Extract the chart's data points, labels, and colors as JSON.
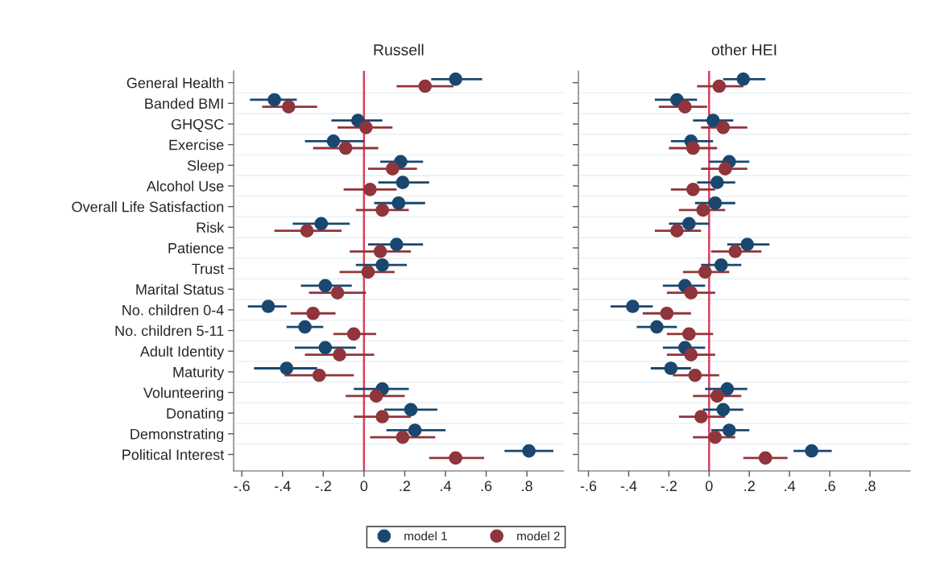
{
  "chart_data": [
    {
      "type": "scatter",
      "orientation": "horizontal",
      "title": "Russell",
      "marker": "circle",
      "grid": "y",
      "legend": "bottom",
      "categories": [
        "General Health",
        "Banded BMI",
        "GHQSC",
        "Exercise",
        "Sleep",
        "Alcohol Use",
        "Overall Life Satisfaction",
        "Risk",
        "Patience",
        "Trust",
        "Marital Status",
        "No. children 0-4",
        "No. children 5-11",
        "Adult Identity",
        "Maturity",
        "Volunteering",
        "Donating",
        "Demonstrating",
        "Political Interest"
      ],
      "xlim": [
        -0.64,
        0.98
      ],
      "xticks": [
        {
          "value": -0.6,
          "label": "-.6"
        },
        {
          "value": -0.4,
          "label": "-.4"
        },
        {
          "value": -0.2,
          "label": "-.2"
        },
        0,
        {
          "value": 0.2,
          "label": ".2"
        },
        {
          "value": 0.4,
          "label": ".4"
        },
        {
          "value": 0.6,
          "label": ".6"
        },
        {
          "value": 0.8,
          "label": ".8"
        }
      ],
      "ref_lines": [
        {
          "axis": "x",
          "value": 0,
          "color": "#d6405e"
        }
      ],
      "series": [
        {
          "name": "model 1",
          "color": "#1a476f",
          "values": [
            0.45,
            -0.44,
            -0.03,
            -0.15,
            0.18,
            0.19,
            0.17,
            -0.21,
            0.16,
            0.09,
            -0.19,
            -0.47,
            -0.29,
            -0.19,
            -0.38,
            0.09,
            0.23,
            0.25,
            0.81
          ],
          "errors": [
            [
              0.33,
              0.58
            ],
            [
              -0.56,
              -0.33
            ],
            [
              -0.16,
              0.09
            ],
            [
              -0.29,
              0.0
            ],
            [
              0.08,
              0.29
            ],
            [
              0.07,
              0.32
            ],
            [
              0.05,
              0.3
            ],
            [
              -0.35,
              -0.07
            ],
            [
              0.02,
              0.29
            ],
            [
              -0.04,
              0.21
            ],
            [
              -0.31,
              -0.06
            ],
            [
              -0.57,
              -0.38
            ],
            [
              -0.38,
              -0.2
            ],
            [
              -0.34,
              -0.04
            ],
            [
              -0.54,
              -0.23
            ],
            [
              -0.05,
              0.22
            ],
            [
              0.1,
              0.36
            ],
            [
              0.11,
              0.4
            ],
            [
              0.69,
              0.93
            ]
          ]
        },
        {
          "name": "model 2",
          "color": "#90353b",
          "values": [
            0.3,
            -0.37,
            0.01,
            -0.09,
            0.14,
            0.03,
            0.09,
            -0.28,
            0.08,
            0.02,
            -0.13,
            -0.25,
            -0.05,
            -0.12,
            -0.22,
            0.06,
            0.09,
            0.19,
            0.45
          ],
          "errors": [
            [
              0.16,
              0.44
            ],
            [
              -0.5,
              -0.23
            ],
            [
              -0.13,
              0.14
            ],
            [
              -0.25,
              0.07
            ],
            [
              0.02,
              0.26
            ],
            [
              -0.1,
              0.16
            ],
            [
              -0.04,
              0.22
            ],
            [
              -0.44,
              -0.11
            ],
            [
              -0.07,
              0.23
            ],
            [
              -0.12,
              0.15
            ],
            [
              -0.27,
              0.01
            ],
            [
              -0.36,
              -0.14
            ],
            [
              -0.15,
              0.06
            ],
            [
              -0.29,
              0.05
            ],
            [
              -0.39,
              -0.05
            ],
            [
              -0.09,
              0.2
            ],
            [
              -0.05,
              0.23
            ],
            [
              0.03,
              0.35
            ],
            [
              0.32,
              0.59
            ]
          ]
        }
      ]
    },
    {
      "type": "scatter",
      "orientation": "horizontal",
      "title": "other HEI",
      "marker": "circle",
      "grid": "y",
      "tick_labels": "x",
      "categories": [
        null,
        null,
        null,
        null,
        null,
        null,
        null,
        null,
        null,
        null,
        null,
        null,
        null,
        null,
        null,
        null,
        null,
        null,
        null
      ],
      "xlim": [
        -0.65,
        1.0
      ],
      "xticks": [
        {
          "value": -0.6,
          "label": "-.6"
        },
        {
          "value": -0.4,
          "label": "-.4"
        },
        {
          "value": -0.2,
          "label": "-.2"
        },
        0,
        {
          "value": 0.2,
          "label": ".2"
        },
        {
          "value": 0.4,
          "label": ".4"
        },
        {
          "value": 0.6,
          "label": ".6"
        },
        {
          "value": 0.8,
          "label": ".8"
        }
      ],
      "ref_lines": [
        {
          "axis": "x",
          "value": 0,
          "color": "#d6405e"
        }
      ],
      "series": [
        {
          "color": "#1a476f",
          "values": [
            0.17,
            -0.16,
            0.02,
            -0.09,
            0.1,
            0.04,
            0.03,
            -0.1,
            0.19,
            0.06,
            -0.12,
            -0.38,
            -0.26,
            -0.12,
            -0.19,
            0.09,
            0.07,
            0.1,
            0.51
          ],
          "errors": [
            [
              0.07,
              0.28
            ],
            [
              -0.27,
              -0.06
            ],
            [
              -0.08,
              0.12
            ],
            [
              -0.19,
              0.02
            ],
            [
              0.0,
              0.2
            ],
            [
              -0.06,
              0.13
            ],
            [
              -0.07,
              0.13
            ],
            [
              -0.2,
              0.0
            ],
            [
              0.09,
              0.3
            ],
            [
              -0.04,
              0.16
            ],
            [
              -0.23,
              -0.02
            ],
            [
              -0.49,
              -0.28
            ],
            [
              -0.36,
              -0.16
            ],
            [
              -0.23,
              -0.02
            ],
            [
              -0.29,
              -0.09
            ],
            [
              -0.02,
              0.19
            ],
            [
              -0.03,
              0.17
            ],
            [
              0.01,
              0.2
            ],
            [
              0.42,
              0.61
            ]
          ]
        },
        {
          "color": "#90353b",
          "values": [
            0.05,
            -0.12,
            0.07,
            -0.08,
            0.08,
            -0.08,
            -0.03,
            -0.16,
            0.13,
            -0.02,
            -0.09,
            -0.21,
            -0.1,
            -0.09,
            -0.07,
            0.04,
            -0.04,
            0.03,
            0.28
          ],
          "errors": [
            [
              -0.06,
              0.17
            ],
            [
              -0.25,
              -0.01
            ],
            [
              -0.04,
              0.19
            ],
            [
              -0.2,
              0.04
            ],
            [
              -0.04,
              0.19
            ],
            [
              -0.19,
              0.03
            ],
            [
              -0.15,
              0.08
            ],
            [
              -0.27,
              -0.04
            ],
            [
              0.01,
              0.26
            ],
            [
              -0.13,
              0.1
            ],
            [
              -0.21,
              0.03
            ],
            [
              -0.33,
              -0.09
            ],
            [
              -0.21,
              0.02
            ],
            [
              -0.21,
              0.03
            ],
            [
              -0.18,
              0.05
            ],
            [
              -0.08,
              0.16
            ],
            [
              -0.15,
              0.08
            ],
            [
              -0.08,
              0.13
            ],
            [
              0.17,
              0.39
            ]
          ]
        }
      ]
    }
  ]
}
